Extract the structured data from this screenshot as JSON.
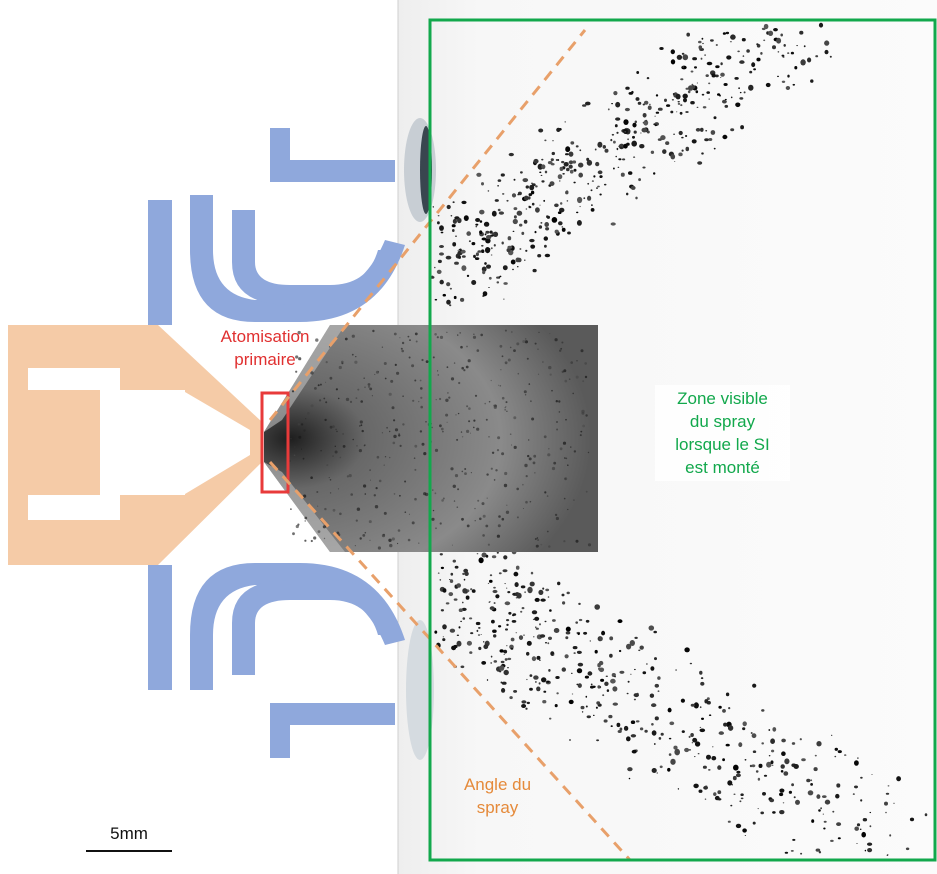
{
  "labels": {
    "primary_atomization": "Atomisation\nprimaire",
    "visible_zone": "Zone visible\ndu spray\nlorsque le SI\nest monté",
    "spray_angle": "Angle du\nspray",
    "scale_bar": "5mm"
  },
  "colors": {
    "swirler_blue": "#8fa8dc",
    "injector_orange": "#f5cba7",
    "frame_green": "#12a84c",
    "angle_orange": "#e8a06a",
    "highlight_red": "#e83a3a",
    "text_red": "#e03030",
    "text_green": "#12a84c",
    "text_orange": "#e58a3a"
  }
}
